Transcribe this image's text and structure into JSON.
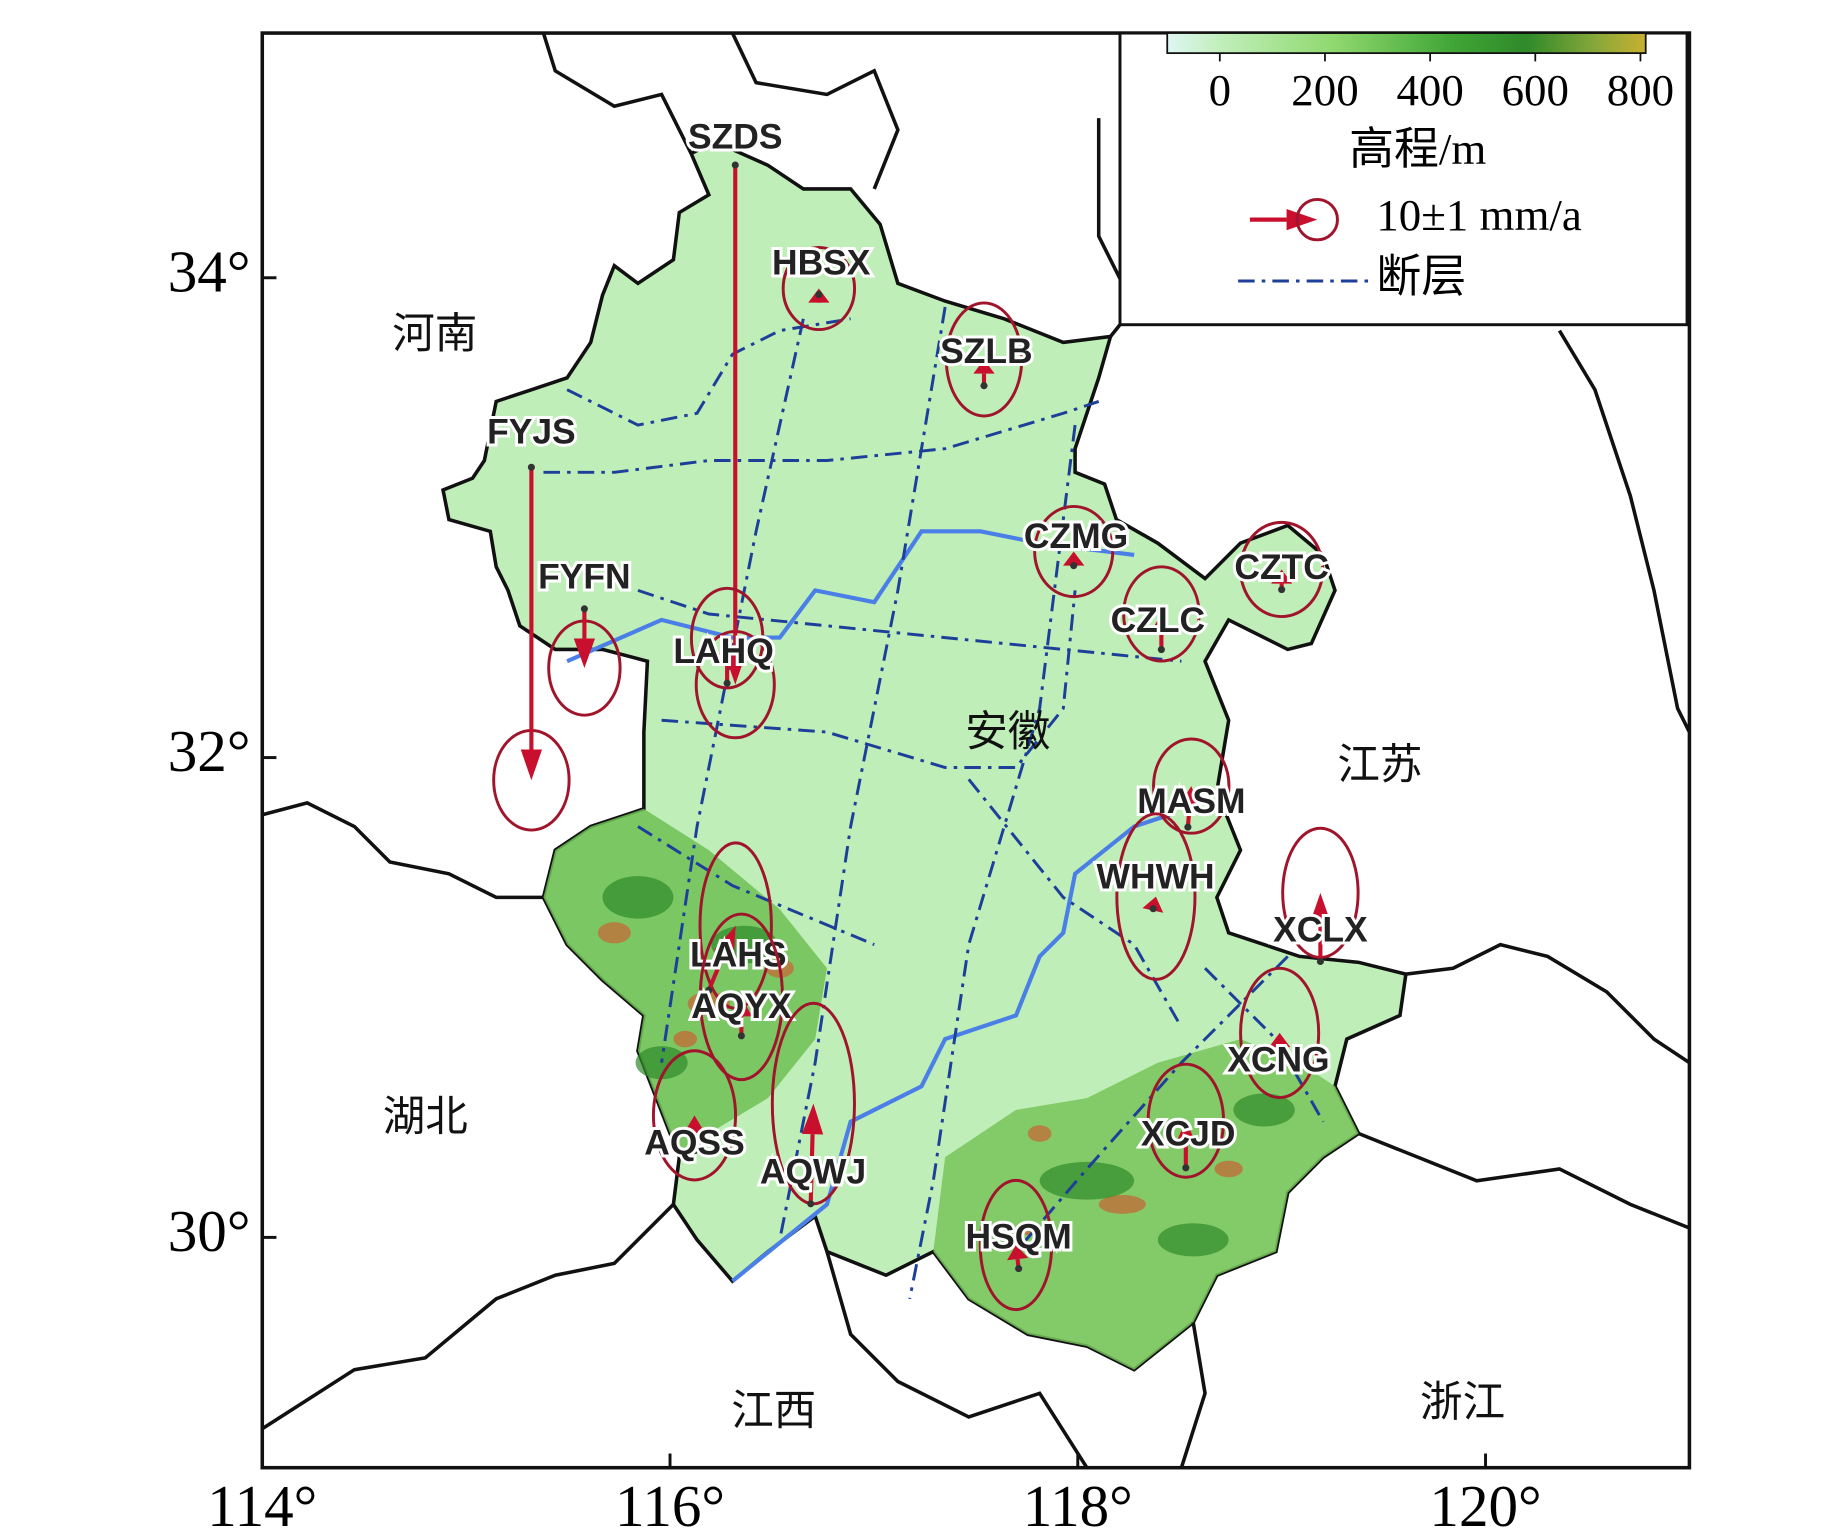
{
  "map": {
    "xlim": [
      114,
      121
    ],
    "ylim": [
      29.04,
      35.02
    ],
    "xticks": [
      {
        "value": 114,
        "label": "114°"
      },
      {
        "value": 116,
        "label": "116°"
      },
      {
        "value": 118,
        "label": "118°"
      },
      {
        "value": 120,
        "label": "120°"
      }
    ],
    "yticks": [
      {
        "value": 30,
        "label": "30°"
      },
      {
        "value": 32,
        "label": "32°"
      },
      {
        "value": 34,
        "label": "34°"
      }
    ],
    "colorbar": {
      "clim": [
        -100,
        810
      ],
      "ticks": [
        0,
        200,
        400,
        600,
        800
      ],
      "label": "高程/m"
    },
    "legend": {
      "arrow_value": 10,
      "arrow_error": 1,
      "arrow_label": "10±1 mm/a",
      "fault_label": "断层"
    },
    "provinces": [
      "河南",
      "安徽",
      "江苏",
      "湖北",
      "江西",
      "浙江"
    ],
    "stations": [
      {
        "name": "SZDS",
        "lon": 116.32,
        "lat": 34.47,
        "ve": 0,
        "vn": -77.2,
        "se": 5.8,
        "sn": 7.9
      },
      {
        "name": "HBSX",
        "lon": 116.73,
        "lat": 33.93,
        "ve": 0,
        "vn": 0.9,
        "se": 5.3,
        "sn": 6.1
      },
      {
        "name": "SZLB",
        "lon": 117.54,
        "lat": 33.55,
        "ve": 0,
        "vn": 3.9,
        "se": 5.6,
        "sn": 8.4
      },
      {
        "name": "FYJS",
        "lon": 115.32,
        "lat": 33.21,
        "ve": 0,
        "vn": -46.5,
        "se": 5.6,
        "sn": 7.4
      },
      {
        "name": "FYFN",
        "lon": 115.58,
        "lat": 32.62,
        "ve": 0,
        "vn": -8.8,
        "se": 5.3,
        "sn": 7.0
      },
      {
        "name": "LAHQ",
        "lon": 116.28,
        "lat": 32.31,
        "ve": 0,
        "vn": 6.7,
        "se": 5.3,
        "sn": 7.4
      },
      {
        "name": "CZMG",
        "lon": 117.98,
        "lat": 32.8,
        "ve": 0,
        "vn": 2.1,
        "se": 5.8,
        "sn": 6.7
      },
      {
        "name": "CZTC",
        "lon": 119.0,
        "lat": 32.7,
        "ve": 0,
        "vn": 3.0,
        "se": 6.1,
        "sn": 7.0
      },
      {
        "name": "CZLC",
        "lon": 118.41,
        "lat": 32.45,
        "ve": 0,
        "vn": 5.3,
        "se": 5.6,
        "sn": 7.0
      },
      {
        "name": "MASM",
        "lon": 118.54,
        "lat": 31.71,
        "ve": 0.5,
        "vn": 6.1,
        "se": 5.6,
        "sn": 7.0
      },
      {
        "name": "WHWH",
        "lon": 118.37,
        "lat": 31.37,
        "ve": 0.4,
        "vn": 1.8,
        "se": 5.8,
        "sn": 12.3
      },
      {
        "name": "XCLX",
        "lon": 119.19,
        "lat": 31.15,
        "ve": 0,
        "vn": 10.2,
        "se": 5.6,
        "sn": 9.6
      },
      {
        "name": "LAHS",
        "lon": 116.19,
        "lat": 31.03,
        "ve": 4.0,
        "vn": 9.6,
        "se": 5.3,
        "sn": 12.3
      },
      {
        "name": "AQYX",
        "lon": 116.35,
        "lat": 30.84,
        "ve": 0,
        "vn": 5.8,
        "se": 6.1,
        "sn": 12.3
      },
      {
        "name": "AQSS",
        "lon": 116.12,
        "lat": 30.36,
        "ve": 0,
        "vn": 5.3,
        "se": 6.1,
        "sn": 9.6
      },
      {
        "name": "AQWJ",
        "lon": 116.69,
        "lat": 30.14,
        "ve": 0.4,
        "vn": 14.9,
        "se": 6.1,
        "sn": 14.9
      },
      {
        "name": "XCNG",
        "lon": 118.99,
        "lat": 30.74,
        "ve": 0,
        "vn": 4.0,
        "se": 5.8,
        "sn": 9.6
      },
      {
        "name": "XCJD",
        "lon": 118.53,
        "lat": 30.29,
        "ve": 0,
        "vn": 7.0,
        "se": 5.6,
        "sn": 8.4
      },
      {
        "name": "HSQM",
        "lon": 117.71,
        "lat": 29.87,
        "ve": -0.4,
        "vn": 3.5,
        "se": 5.3,
        "sn": 9.6
      }
    ]
  }
}
